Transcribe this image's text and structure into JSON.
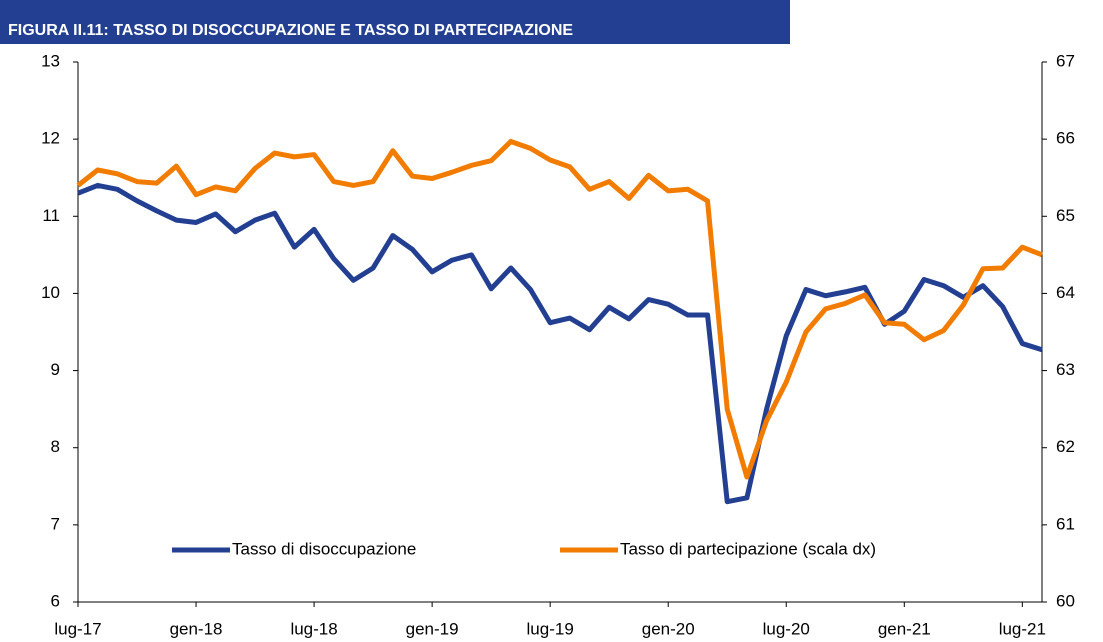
{
  "chart_data": {
    "type": "line",
    "title": "FIGURA II.11: TASSO DI DISOCCUPAZIONE E TASSO DI PARTECIPAZIONE",
    "categories": [
      "lug-17",
      null,
      null,
      null,
      null,
      null,
      "gen-18",
      null,
      null,
      null,
      null,
      null,
      "lug-18",
      null,
      null,
      null,
      null,
      null,
      "gen-19",
      null,
      null,
      null,
      null,
      null,
      "lug-19",
      null,
      null,
      null,
      null,
      null,
      "gen-20",
      null,
      null,
      null,
      null,
      null,
      "lug-20",
      null,
      null,
      null,
      null,
      null,
      "gen-21",
      null,
      null,
      null,
      null,
      null,
      "lug-21",
      null
    ],
    "series": [
      {
        "name": "Tasso di disoccupazione",
        "color": "#233f91",
        "axis": "y",
        "values": [
          11.3,
          11.4,
          11.35,
          11.2,
          11.07,
          10.95,
          10.92,
          11.03,
          10.8,
          10.95,
          11.04,
          10.6,
          10.83,
          10.45,
          10.17,
          10.33,
          10.75,
          10.57,
          10.28,
          10.43,
          10.5,
          10.06,
          10.33,
          10.05,
          9.62,
          9.68,
          9.53,
          9.82,
          9.67,
          9.92,
          9.86,
          9.72,
          9.72,
          7.3,
          7.35,
          8.5,
          9.45,
          10.05,
          9.97,
          10.02,
          10.08,
          9.6,
          9.77,
          10.18,
          10.1,
          9.95,
          10.1,
          9.83,
          9.35,
          9.27
        ]
      },
      {
        "name": "Tasso di partecipazione (scala dx)",
        "color": "#f27c00",
        "axis": "y2",
        "values": [
          65.4,
          65.6,
          65.55,
          65.45,
          65.43,
          65.65,
          65.28,
          65.38,
          65.33,
          65.62,
          65.82,
          65.77,
          65.8,
          65.45,
          65.4,
          65.45,
          65.85,
          65.52,
          65.49,
          65.57,
          65.66,
          65.72,
          65.97,
          65.88,
          65.73,
          65.64,
          65.35,
          65.45,
          65.23,
          65.53,
          65.33,
          65.35,
          65.2,
          62.5,
          61.62,
          62.35,
          62.85,
          63.5,
          63.8,
          63.87,
          63.98,
          63.62,
          63.6,
          63.4,
          63.52,
          63.85,
          64.32,
          64.33,
          64.6,
          64.5
        ]
      }
    ],
    "ylim": [
      6,
      13
    ],
    "yticks": [
      6,
      7,
      8,
      9,
      10,
      11,
      12,
      13
    ],
    "y2lim": [
      60,
      67
    ],
    "y2ticks": [
      60,
      61,
      62,
      63,
      64,
      65,
      66,
      67
    ],
    "grid": false,
    "legend": "bottom"
  }
}
